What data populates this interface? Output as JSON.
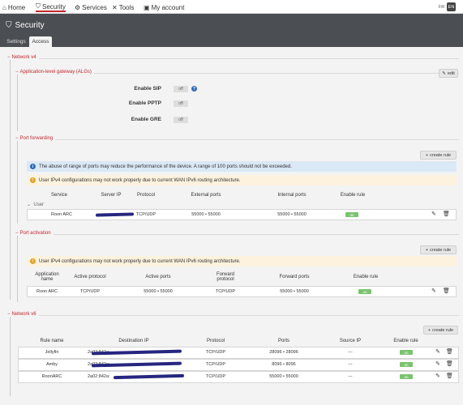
{
  "nav": {
    "home": "Home",
    "security": "Security",
    "services": "Services",
    "tools": "Tools",
    "account": "My account",
    "lang_fr": "FR",
    "lang_en": "EN"
  },
  "header": {
    "title": "Security"
  },
  "tabs": {
    "settings": "Settings",
    "access": "Access"
  },
  "net4": {
    "title": "Network v4",
    "alg": {
      "title": "Application-level gateway (ALGs)",
      "edit": "edit",
      "sip_label": "Enable SIP",
      "pptp_label": "Enable PPTP",
      "gre_label": "Enable GRE",
      "off": "off"
    },
    "pf": {
      "title": "Port forwarding",
      "create": "create rule",
      "info": "The abuse of range of ports may reduce the performance of the device. A range of 100 ports should not be exceeded.",
      "warn": "User IPv4 configurations may not work properly due to current WAN IPv6 routing architecture.",
      "headers": [
        "Service",
        "Server IP",
        "Protocol",
        "External ports",
        "Internal ports",
        "Enable rule"
      ],
      "group": "User",
      "row": {
        "service": "Roon ARC",
        "protocol": "TCP/UDP",
        "external": "55000 • 55000",
        "internal": "55000 • 55000",
        "enabled": "on"
      }
    },
    "pa": {
      "title": "Port activation",
      "create": "create rule",
      "warn": "User IPv4 configurations may not work properly due to current WAN IPv6 routing architecture.",
      "headers": [
        "Application name",
        "Active protocol",
        "Active ports",
        "Forward protocol",
        "Forward ports",
        "Enable rule"
      ],
      "row": {
        "name": "Roon ARC",
        "active_protocol": "TCP/UDP",
        "active_ports": "55000 • 55000",
        "forward_protocol": "TCP/UDP",
        "forward_ports": "55000 • 55000",
        "enabled": "on"
      }
    }
  },
  "net6": {
    "title": "Network v6",
    "create": "create rule",
    "headers": [
      "Rule name",
      "Destination IP",
      "Protocol",
      "Ports",
      "Source IP",
      "Enable rule"
    ],
    "rows": [
      {
        "name": "Jellyfin",
        "ip": "2a02:842a:",
        "protocol": "TCP/UDP",
        "ports": "28096 • 28096",
        "source": "---",
        "enabled": "on"
      },
      {
        "name": "Amby",
        "ip": "2a02:842a:",
        "protocol": "TCP/UDP",
        "ports": "8096 • 8096",
        "source": "---",
        "enabled": "on"
      },
      {
        "name": "RoonARC",
        "ip": "2a02:842a:",
        "protocol": "TCP/UDP",
        "ports": "55000 • 55000",
        "source": "---",
        "enabled": "on"
      }
    ]
  },
  "colors": {
    "accent": "#c0282d",
    "header_bg": "#4b4e52",
    "on": "#79c36e",
    "info_bg": "#dbe8f6",
    "warn_bg": "#fcf2dd"
  },
  "icons": [
    "home-icon",
    "shield-icon",
    "gears-icon",
    "tools-icon",
    "user-icon",
    "pencil-icon",
    "plus-icon",
    "info-icon",
    "warning-icon",
    "trash-icon",
    "help-icon"
  ]
}
